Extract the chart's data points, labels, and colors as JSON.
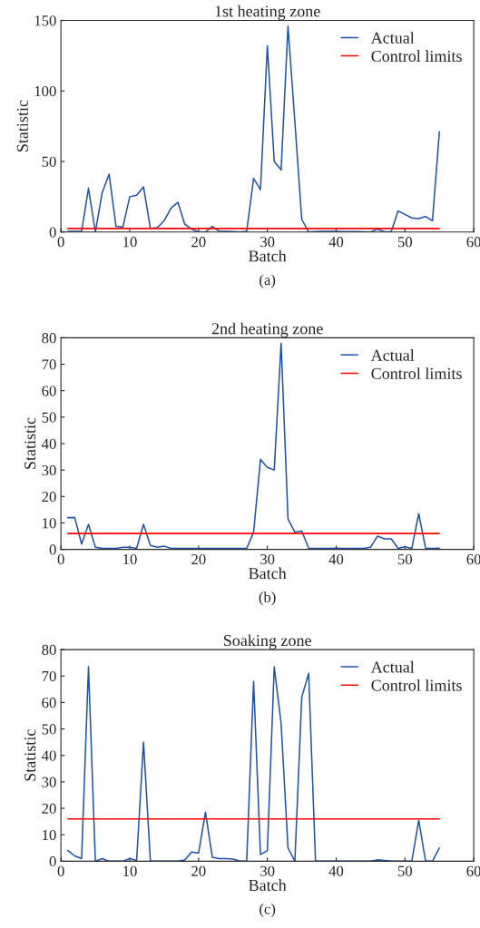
{
  "chart_data": [
    {
      "type": "line",
      "title": "1st heating zone",
      "xlabel": "Batch",
      "ylabel": "Statistic",
      "annotations": [
        "(a)"
      ],
      "xlim": [
        0,
        60
      ],
      "xticks": [
        0,
        10,
        20,
        30,
        40,
        50,
        60
      ],
      "ylim": [
        0,
        150
      ],
      "yticks": [
        0,
        50,
        100,
        150
      ],
      "legend": "top right",
      "grid": false,
      "series": [
        {
          "name": "Actual",
          "color": "#2050a8",
          "x": [
            1,
            2,
            3,
            4,
            5,
            6,
            7,
            8,
            9,
            10,
            11,
            12,
            13,
            14,
            15,
            16,
            17,
            18,
            19,
            20,
            21,
            22,
            23,
            24,
            25,
            26,
            27,
            28,
            29,
            30,
            31,
            32,
            33,
            34,
            35,
            36,
            37,
            38,
            39,
            40,
            41,
            42,
            43,
            44,
            45,
            46,
            47,
            48,
            49,
            50,
            51,
            52,
            53,
            54,
            55
          ],
          "values": [
            0.5,
            0.5,
            0.5,
            31,
            0,
            28,
            41,
            4,
            3.5,
            25,
            26,
            32,
            2.5,
            3,
            8,
            17,
            21,
            5.5,
            2,
            0,
            0,
            4,
            0.5,
            0.5,
            0.3,
            0,
            0.5,
            38,
            30,
            132,
            50,
            44,
            146,
            78,
            9,
            0,
            0.3,
            0.5,
            0.5,
            0.5,
            0.3,
            0.3,
            0.3,
            0.2,
            0,
            2,
            0.2,
            0.2,
            15,
            12.5,
            10,
            9.5,
            11,
            8,
            71
          ]
        },
        {
          "name": "Control limits",
          "color": "#ff0000",
          "x": [
            1,
            55
          ],
          "values": [
            2.5,
            2.5
          ]
        }
      ]
    },
    {
      "type": "line",
      "title": "2nd heating zone",
      "xlabel": "Batch",
      "ylabel": "Statistic",
      "annotations": [
        "(b)"
      ],
      "xlim": [
        0,
        60
      ],
      "xticks": [
        0,
        10,
        20,
        30,
        40,
        50,
        60
      ],
      "ylim": [
        0,
        80
      ],
      "yticks": [
        0,
        10,
        20,
        30,
        40,
        50,
        60,
        70,
        80
      ],
      "legend": "top right",
      "grid": false,
      "series": [
        {
          "name": "Actual",
          "color": "#2050a8",
          "x": [
            1,
            2,
            3,
            4,
            5,
            6,
            7,
            8,
            9,
            10,
            11,
            12,
            13,
            14,
            15,
            16,
            17,
            18,
            19,
            20,
            21,
            22,
            23,
            24,
            25,
            26,
            27,
            28,
            29,
            30,
            31,
            32,
            33,
            34,
            35,
            36,
            37,
            38,
            39,
            40,
            41,
            42,
            43,
            44,
            45,
            46,
            47,
            48,
            49,
            50,
            51,
            52,
            53,
            54,
            55
          ],
          "values": [
            12,
            12,
            2,
            9.5,
            0.8,
            0.4,
            0.4,
            0.4,
            0.8,
            0.8,
            0.4,
            9.5,
            1.5,
            0.8,
            1.2,
            0.4,
            0.4,
            0.4,
            0.4,
            0.4,
            0.4,
            0.4,
            0.4,
            0.4,
            0.4,
            0.4,
            0.4,
            6.5,
            34,
            31,
            30,
            78,
            11.5,
            6.5,
            7,
            0.4,
            0.4,
            0.4,
            0.4,
            0.5,
            0.4,
            0.4,
            0.4,
            0.4,
            0.8,
            5,
            4,
            4,
            0.4,
            1,
            0.4,
            13.5,
            0.4,
            0.4,
            0.5
          ]
        },
        {
          "name": "Control limits",
          "color": "#ff0000",
          "x": [
            1,
            55
          ],
          "values": [
            6,
            6
          ]
        }
      ]
    },
    {
      "type": "line",
      "title": "Soaking zone",
      "xlabel": "Batch",
      "ylabel": "Statistic",
      "annotations": [
        "(c)"
      ],
      "xlim": [
        0,
        60
      ],
      "xticks": [
        0,
        10,
        20,
        30,
        40,
        50,
        60
      ],
      "ylim": [
        0,
        80
      ],
      "yticks": [
        0,
        10,
        20,
        30,
        40,
        50,
        60,
        70,
        80
      ],
      "legend": "top right",
      "grid": false,
      "series": [
        {
          "name": "Actual",
          "color": "#2050a8",
          "x": [
            1,
            2,
            3,
            4,
            5,
            6,
            7,
            8,
            9,
            10,
            11,
            12,
            13,
            14,
            15,
            16,
            17,
            18,
            19,
            20,
            21,
            22,
            23,
            24,
            25,
            26,
            27,
            28,
            29,
            30,
            31,
            32,
            33,
            34,
            35,
            36,
            37,
            38,
            39,
            40,
            41,
            42,
            43,
            44,
            45,
            46,
            47,
            48,
            49,
            50,
            51,
            52,
            53,
            54,
            55
          ],
          "values": [
            4,
            2,
            1,
            73.5,
            0,
            1,
            0,
            0,
            0,
            1,
            0.3,
            45,
            0,
            0,
            0,
            0,
            0,
            0.5,
            3.5,
            3,
            18.5,
            1.5,
            1,
            1,
            0.8,
            0,
            0,
            68,
            2.5,
            4,
            73.5,
            52,
            5,
            0,
            62,
            71,
            0,
            0,
            0,
            0,
            0,
            0,
            0,
            0,
            0,
            0.5,
            0.3,
            0,
            0,
            0,
            0,
            15.5,
            0,
            0,
            5
          ]
        },
        {
          "name": "Control limits",
          "color": "#ff0000",
          "x": [
            1,
            55
          ],
          "values": [
            16,
            16
          ]
        }
      ]
    }
  ]
}
